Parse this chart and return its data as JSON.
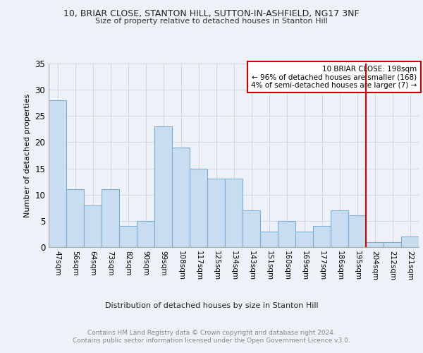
{
  "title1": "10, BRIAR CLOSE, STANTON HILL, SUTTON-IN-ASHFIELD, NG17 3NF",
  "title2": "Size of property relative to detached houses in Stanton Hill",
  "xlabel": "Distribution of detached houses by size in Stanton Hill",
  "ylabel": "Number of detached properties",
  "categories": [
    "47sqm",
    "56sqm",
    "64sqm",
    "73sqm",
    "82sqm",
    "90sqm",
    "99sqm",
    "108sqm",
    "117sqm",
    "125sqm",
    "134sqm",
    "143sqm",
    "151sqm",
    "160sqm",
    "169sqm",
    "177sqm",
    "186sqm",
    "195sqm",
    "204sqm",
    "212sqm",
    "221sqm"
  ],
  "values": [
    28,
    11,
    8,
    11,
    4,
    5,
    23,
    19,
    15,
    13,
    13,
    7,
    3,
    5,
    3,
    4,
    7,
    6,
    1,
    1,
    2
  ],
  "bar_color": "#c8ddf0",
  "bar_edge_color": "#7bafd4",
  "annotation_box_text": "10 BRIAR CLOSE: 198sqm\n← 96% of detached houses are smaller (168)\n4% of semi-detached houses are larger (7) →",
  "box_color": "#ffffff",
  "box_edge_color": "#cc0000",
  "line_color": "#cc0000",
  "grid_color": "#d0d8e8",
  "ylim": [
    0,
    35
  ],
  "yticks": [
    0,
    5,
    10,
    15,
    20,
    25,
    30,
    35
  ],
  "footer": "Contains HM Land Registry data © Crown copyright and database right 2024.\nContains public sector information licensed under the Open Government Licence v3.0.",
  "bg_color": "#eef2f8"
}
